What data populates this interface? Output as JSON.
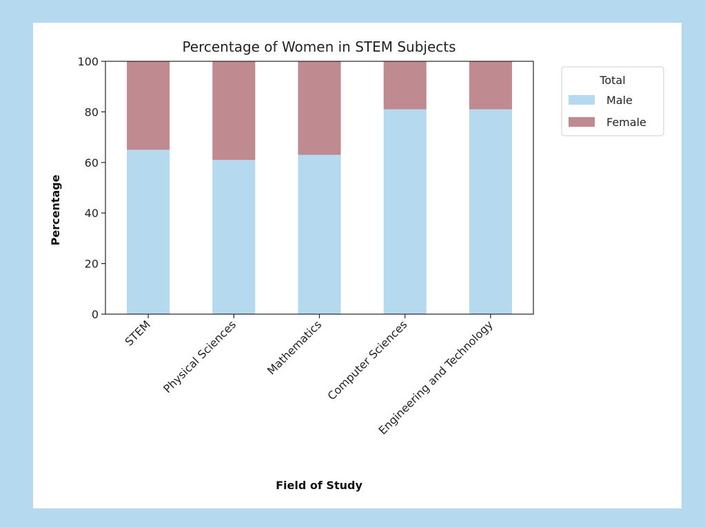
{
  "chart_data": {
    "type": "bar",
    "stacked": true,
    "title": "Percentage of Women in STEM Subjects",
    "xlabel": "Field of Study",
    "ylabel": "Percentage",
    "ylim": [
      0,
      100
    ],
    "yticks": [
      0,
      20,
      40,
      60,
      80,
      100
    ],
    "categories": [
      "STEM",
      "Physical Sciences",
      "Mathematics",
      "Computer Sciences",
      "Engineering and Technology"
    ],
    "series": [
      {
        "name": "Male",
        "values": [
          65,
          61,
          63,
          81,
          81
        ],
        "color": "#b5d9ee"
      },
      {
        "name": "Female",
        "values": [
          35,
          39,
          37,
          19,
          19
        ],
        "color": "#c08a91"
      }
    ],
    "legend": {
      "title": "Total",
      "placement": "upper-right-outside"
    }
  }
}
